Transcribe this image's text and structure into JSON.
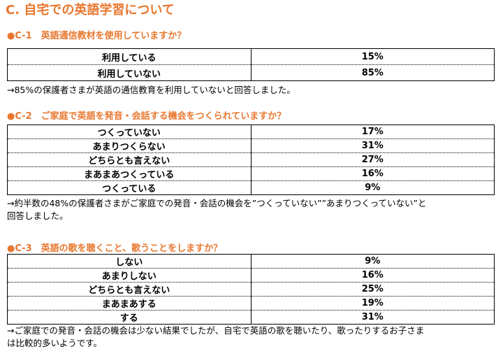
{
  "title": "C. 自宅での英語学習について",
  "sections": [
    {
      "heading": "●C-1　英語通信教材を使用していますか？",
      "rows": [
        [
          "利用している",
          "15%"
        ],
        [
          "利用していない",
          "85%"
        ]
      ],
      "note": [
        "→85%の保護者さまが英語の通信教育を利用していないと回答しました。"
      ]
    },
    {
      "heading": "●C-2　ご家庭で英語を発音・会話する機会をつくられていますか？",
      "rows": [
        [
          "つくっていない",
          "17%"
        ],
        [
          "あまりつくらない",
          "31%"
        ],
        [
          "どちらとも言えない",
          "27%"
        ],
        [
          "まあまあつくっている",
          "16%"
        ],
        [
          "つくっている",
          "9%"
        ]
      ],
      "note": [
        "→約半数の48%の保護者さまがご家庭での発音・会話の機会を”つくっていない””あまりつくっていない”と",
        "回答しました。"
      ]
    },
    {
      "heading": "●C-3　英語の歌を聴くこと、歌うことをしますか？",
      "rows": [
        [
          "しない",
          "9%"
        ],
        [
          "あまりしない",
          "16%"
        ],
        [
          "どちらとも言えない",
          "25%"
        ],
        [
          "まあまあする",
          "19%"
        ],
        [
          "する",
          "31%"
        ]
      ],
      "note": [
        "→ご家庭での発音・会話の機会は少ない結果でしたが、自宅で英語の歌を聴いたり、歌ったりするお子さま",
        "は比較的多いようです。"
      ]
    }
  ]
}
